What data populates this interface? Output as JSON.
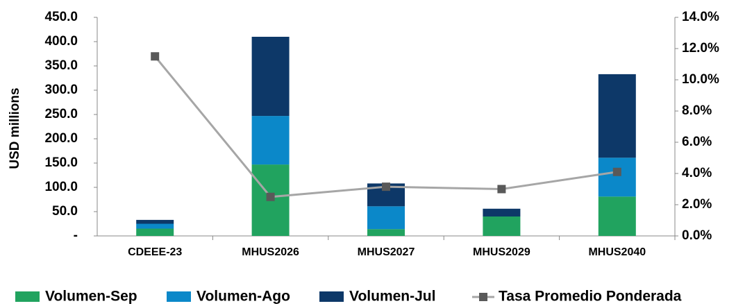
{
  "chart_data": {
    "type": "stacked-bar-line",
    "y_label": "USD millions",
    "categories": [
      "CDEEE-23",
      "MHUS2026",
      "MHUS2027",
      "MHUS2029",
      "MHUS2040"
    ],
    "series": [
      {
        "name": "Volumen-Sep",
        "color": "#21a35f",
        "values": [
          15,
          147,
          14,
          40,
          81
        ]
      },
      {
        "name": "Volumen-Ago",
        "color": "#0b88c9",
        "values": [
          10,
          100,
          47,
          0,
          80
        ]
      },
      {
        "name": "Volumen-Jul",
        "color": "#0d3868",
        "values": [
          8,
          163,
          47,
          16,
          172
        ]
      },
      {
        "name": "Tasa Promedio Ponderada",
        "color": "#a6a6a6",
        "marker_color": "#595959",
        "axis": "y2",
        "values": [
          11.5,
          2.5,
          3.15,
          3.0,
          4.1
        ]
      }
    ],
    "ylim": [
      0,
      450
    ],
    "yticks": [
      {
        "value": 0,
        "label": "-"
      },
      {
        "value": 50,
        "label": "50.0"
      },
      {
        "value": 100,
        "label": "100.0"
      },
      {
        "value": 150,
        "label": "150.0"
      },
      {
        "value": 200,
        "label": "200.0"
      },
      {
        "value": 250,
        "label": "250.0"
      },
      {
        "value": 300,
        "label": "300.0"
      },
      {
        "value": 350,
        "label": "350.0"
      },
      {
        "value": 400,
        "label": "400.0"
      },
      {
        "value": 450,
        "label": "450.0"
      }
    ],
    "y2lim": [
      0,
      14
    ],
    "y2ticks": [
      {
        "value": 0,
        "label": "0.0%"
      },
      {
        "value": 2,
        "label": "2.0%"
      },
      {
        "value": 4,
        "label": "4.0%"
      },
      {
        "value": 6,
        "label": "6.0%"
      },
      {
        "value": 8,
        "label": "8.0%"
      },
      {
        "value": 10,
        "label": "10.0%"
      },
      {
        "value": 12,
        "label": "12.0%"
      },
      {
        "value": 14,
        "label": "14.0%"
      }
    ]
  }
}
